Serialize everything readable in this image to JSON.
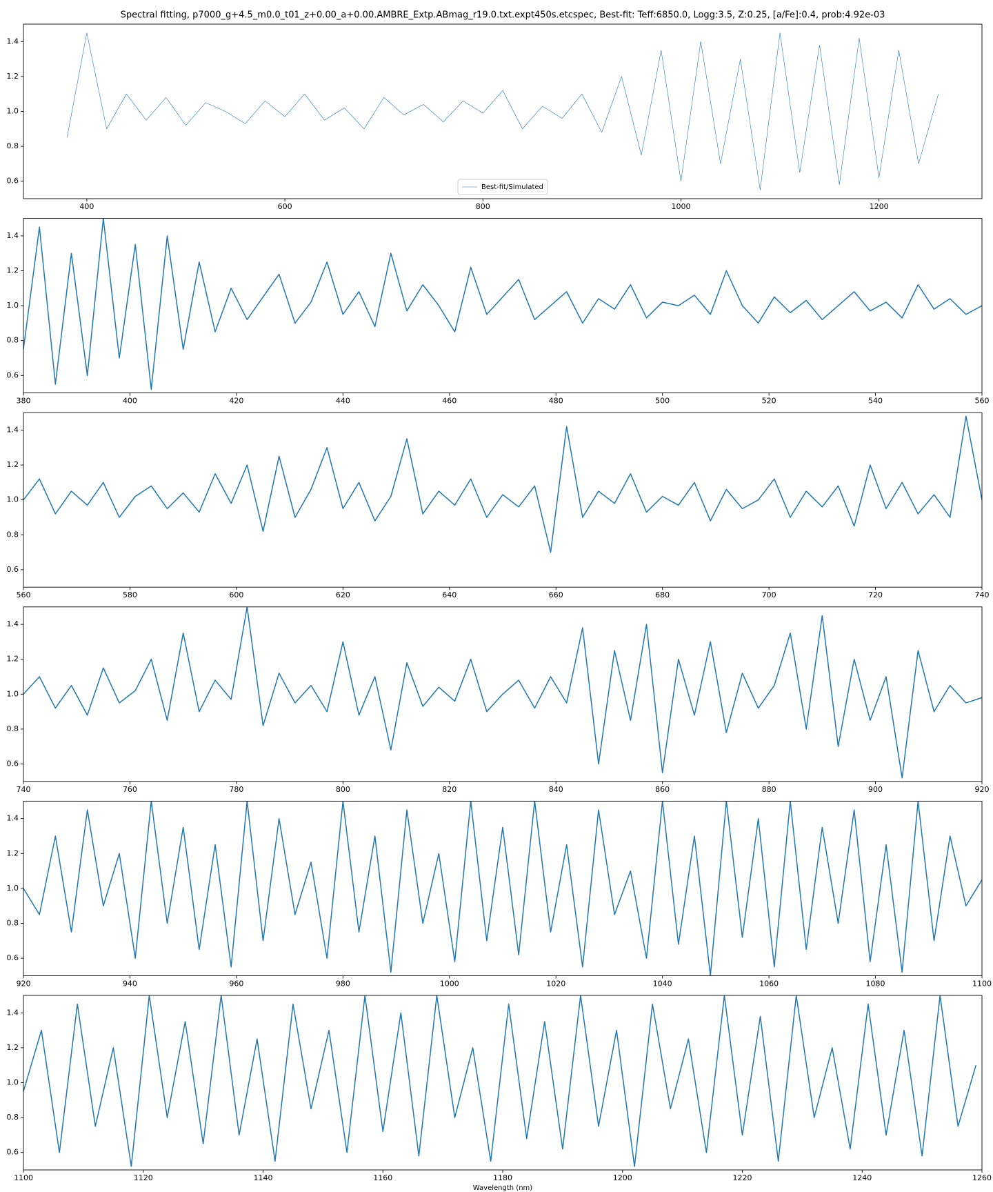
{
  "chart_data": [
    {
      "type": "line",
      "title": "Spectral fitting, p7000_g+4.5_m0.0_t01_z+0.00_a+0.00.AMBRE_Extp.ABmag_r19.0.txt.expt450s.etcspec, Best-fit: Teff:6850.0, Logg:3.5, Z:0.25, [a/Fe]:0.4, prob:4.92e-03",
      "x": [
        380,
        400,
        420,
        440,
        460,
        480,
        500,
        520,
        540,
        560,
        580,
        600,
        620,
        640,
        660,
        680,
        700,
        720,
        740,
        760,
        780,
        800,
        820,
        840,
        860,
        880,
        900,
        920,
        940,
        960,
        980,
        1000,
        1020,
        1040,
        1060,
        1080,
        1100,
        1120,
        1140,
        1160,
        1180,
        1200,
        1220,
        1240,
        1260
      ],
      "series": [
        {
          "name": "Best-fit/Simulated",
          "color": "#1f77b4",
          "values": [
            0.85,
            1.45,
            0.9,
            1.1,
            0.95,
            1.08,
            0.92,
            1.05,
            1.0,
            0.93,
            1.06,
            0.97,
            1.1,
            0.95,
            1.02,
            0.9,
            1.08,
            0.98,
            1.04,
            0.94,
            1.06,
            0.99,
            1.12,
            0.9,
            1.03,
            0.96,
            1.1,
            0.88,
            1.2,
            0.75,
            1.35,
            0.6,
            1.4,
            0.7,
            1.3,
            0.55,
            1.45,
            0.65,
            1.38,
            0.58,
            1.42,
            0.62,
            1.35,
            0.7,
            1.1
          ]
        }
      ],
      "xlim": [
        336,
        1304
      ],
      "xticks": [
        400,
        600,
        800,
        1000,
        1200
      ],
      "ylim": [
        0.5,
        1.5
      ],
      "yticks": [
        0.6,
        0.8,
        {
          "value": 1,
          "label": "1.0"
        },
        1.2,
        1.4
      ],
      "legend": "lower center"
    },
    {
      "type": "line",
      "x": [
        380,
        383,
        386,
        389,
        392,
        395,
        398,
        401,
        404,
        407,
        410,
        413,
        416,
        419,
        422,
        425,
        428,
        431,
        434,
        437,
        440,
        443,
        446,
        449,
        452,
        455,
        458,
        461,
        464,
        467,
        470,
        473,
        476,
        479,
        482,
        485,
        488,
        491,
        494,
        497,
        500,
        503,
        506,
        509,
        512,
        515,
        518,
        521,
        524,
        527,
        530,
        533,
        536,
        539,
        542,
        545,
        548,
        551,
        554,
        557,
        560
      ],
      "series": [
        {
          "color": "#1f77b4",
          "values": [
            0.75,
            1.45,
            0.55,
            1.3,
            0.6,
            1.5,
            0.7,
            1.35,
            0.52,
            1.4,
            0.75,
            1.25,
            0.85,
            1.1,
            0.92,
            1.05,
            1.18,
            0.9,
            1.02,
            1.25,
            0.95,
            1.08,
            0.88,
            1.3,
            0.97,
            1.12,
            1.0,
            0.85,
            1.22,
            0.95,
            1.05,
            1.15,
            0.92,
            1.0,
            1.08,
            0.9,
            1.04,
            0.98,
            1.12,
            0.93,
            1.02,
            1.0,
            1.06,
            0.95,
            1.2,
            1.0,
            0.9,
            1.05,
            0.96,
            1.03,
            0.92,
            1.0,
            1.08,
            0.97,
            1.02,
            0.93,
            1.12,
            0.98,
            1.04,
            0.95,
            1.0
          ]
        }
      ],
      "xlim": [
        380,
        560
      ],
      "xticks": [
        380,
        400,
        420,
        440,
        460,
        480,
        500,
        520,
        540,
        560
      ],
      "ylim": [
        0.5,
        1.5
      ],
      "yticks": [
        0.6,
        0.8,
        {
          "value": 1,
          "label": "1.0"
        },
        1.2,
        1.4
      ]
    },
    {
      "type": "line",
      "x": [
        560,
        563,
        566,
        569,
        572,
        575,
        578,
        581,
        584,
        587,
        590,
        593,
        596,
        599,
        602,
        605,
        608,
        611,
        614,
        617,
        620,
        623,
        626,
        629,
        632,
        635,
        638,
        641,
        644,
        647,
        650,
        653,
        656,
        659,
        662,
        665,
        668,
        671,
        674,
        677,
        680,
        683,
        686,
        689,
        692,
        695,
        698,
        701,
        704,
        707,
        710,
        713,
        716,
        719,
        722,
        725,
        728,
        731,
        734,
        737,
        740
      ],
      "series": [
        {
          "color": "#1f77b4",
          "values": [
            1.0,
            1.12,
            0.92,
            1.05,
            0.97,
            1.1,
            0.9,
            1.02,
            1.08,
            0.95,
            1.04,
            0.93,
            1.15,
            0.98,
            1.2,
            0.82,
            1.25,
            0.9,
            1.06,
            1.3,
            0.95,
            1.1,
            0.88,
            1.02,
            1.35,
            0.92,
            1.05,
            0.97,
            1.12,
            0.9,
            1.03,
            0.96,
            1.08,
            0.7,
            1.42,
            0.9,
            1.05,
            0.98,
            1.15,
            0.93,
            1.02,
            0.97,
            1.1,
            0.88,
            1.06,
            0.95,
            1.0,
            1.12,
            0.9,
            1.05,
            0.96,
            1.08,
            0.85,
            1.2,
            0.95,
            1.1,
            0.92,
            1.03,
            0.9,
            1.48,
            1.0
          ]
        }
      ],
      "xlim": [
        560,
        740
      ],
      "xticks": [
        560,
        580,
        600,
        620,
        640,
        660,
        680,
        700,
        720,
        740
      ],
      "ylim": [
        0.5,
        1.5
      ],
      "yticks": [
        0.6,
        0.8,
        {
          "value": 1,
          "label": "1.0"
        },
        1.2,
        1.4
      ]
    },
    {
      "type": "line",
      "x": [
        740,
        743,
        746,
        749,
        752,
        755,
        758,
        761,
        764,
        767,
        770,
        773,
        776,
        779,
        782,
        785,
        788,
        791,
        794,
        797,
        800,
        803,
        806,
        809,
        812,
        815,
        818,
        821,
        824,
        827,
        830,
        833,
        836,
        839,
        842,
        845,
        848,
        851,
        854,
        857,
        860,
        863,
        866,
        869,
        872,
        875,
        878,
        881,
        884,
        887,
        890,
        893,
        896,
        899,
        902,
        905,
        908,
        911,
        914,
        917,
        920
      ],
      "series": [
        {
          "color": "#1f77b4",
          "values": [
            1.0,
            1.1,
            0.92,
            1.05,
            0.88,
            1.15,
            0.95,
            1.02,
            1.2,
            0.85,
            1.35,
            0.9,
            1.08,
            0.97,
            1.5,
            0.82,
            1.12,
            0.95,
            1.05,
            0.9,
            1.3,
            0.88,
            1.1,
            0.68,
            1.18,
            0.93,
            1.04,
            0.96,
            1.2,
            0.9,
            1.0,
            1.08,
            0.92,
            1.1,
            0.95,
            1.38,
            0.6,
            1.25,
            0.85,
            1.4,
            0.55,
            1.2,
            0.88,
            1.3,
            0.78,
            1.12,
            0.92,
            1.05,
            1.35,
            0.8,
            1.45,
            0.7,
            1.2,
            0.85,
            1.1,
            0.52,
            1.25,
            0.9,
            1.05,
            0.95,
            0.98
          ]
        }
      ],
      "xlim": [
        740,
        920
      ],
      "xticks": [
        740,
        760,
        780,
        800,
        820,
        840,
        860,
        880,
        900,
        920
      ],
      "ylim": [
        0.5,
        1.5
      ],
      "yticks": [
        0.6,
        0.8,
        {
          "value": 1,
          "label": "1.0"
        },
        1.2,
        1.4
      ]
    },
    {
      "type": "line",
      "x": [
        920,
        923,
        926,
        929,
        932,
        935,
        938,
        941,
        944,
        947,
        950,
        953,
        956,
        959,
        962,
        965,
        968,
        971,
        974,
        977,
        980,
        983,
        986,
        989,
        992,
        995,
        998,
        1001,
        1004,
        1007,
        1010,
        1013,
        1016,
        1019,
        1022,
        1025,
        1028,
        1031,
        1034,
        1037,
        1040,
        1043,
        1046,
        1049,
        1052,
        1055,
        1058,
        1061,
        1064,
        1067,
        1070,
        1073,
        1076,
        1079,
        1082,
        1085,
        1088,
        1091,
        1094,
        1097,
        1100
      ],
      "series": [
        {
          "color": "#1f77b4",
          "values": [
            1.0,
            0.85,
            1.3,
            0.75,
            1.45,
            0.9,
            1.2,
            0.6,
            1.5,
            0.8,
            1.35,
            0.65,
            1.25,
            0.55,
            1.5,
            0.7,
            1.4,
            0.85,
            1.15,
            0.6,
            1.5,
            0.75,
            1.3,
            0.52,
            1.45,
            0.8,
            1.2,
            0.58,
            1.5,
            0.7,
            1.35,
            0.62,
            1.5,
            0.75,
            1.25,
            0.55,
            1.45,
            0.85,
            1.1,
            0.6,
            1.5,
            0.68,
            1.3,
            0.5,
            1.5,
            0.72,
            1.4,
            0.55,
            1.5,
            0.65,
            1.35,
            0.8,
            1.45,
            0.58,
            1.25,
            0.52,
            1.5,
            0.7,
            1.3,
            0.9,
            1.05
          ]
        }
      ],
      "xlim": [
        920,
        1100
      ],
      "xticks": [
        920,
        940,
        960,
        980,
        1000,
        1020,
        1040,
        1060,
        1080,
        1100
      ],
      "ylim": [
        0.5,
        1.5
      ],
      "yticks": [
        0.6,
        0.8,
        {
          "value": 1,
          "label": "1.0"
        },
        1.2,
        1.4
      ]
    },
    {
      "type": "line",
      "x_label": "Wavelength (nm)",
      "x": [
        1100,
        1103,
        1106,
        1109,
        1112,
        1115,
        1118,
        1121,
        1124,
        1127,
        1130,
        1133,
        1136,
        1139,
        1142,
        1145,
        1148,
        1151,
        1154,
        1157,
        1160,
        1163,
        1166,
        1169,
        1172,
        1175,
        1178,
        1181,
        1184,
        1187,
        1190,
        1193,
        1196,
        1199,
        1202,
        1205,
        1208,
        1211,
        1214,
        1217,
        1220,
        1223,
        1226,
        1229,
        1232,
        1235,
        1238,
        1241,
        1244,
        1247,
        1250,
        1253,
        1256,
        1259
      ],
      "series": [
        {
          "color": "#1f77b4",
          "values": [
            0.95,
            1.3,
            0.6,
            1.45,
            0.75,
            1.2,
            0.52,
            1.5,
            0.8,
            1.35,
            0.65,
            1.5,
            0.7,
            1.25,
            0.55,
            1.45,
            0.85,
            1.3,
            0.6,
            1.5,
            0.72,
            1.4,
            0.58,
            1.5,
            0.8,
            1.2,
            0.55,
            1.45,
            0.68,
            1.35,
            0.62,
            1.5,
            0.75,
            1.3,
            0.52,
            1.45,
            0.85,
            1.25,
            0.6,
            1.5,
            0.7,
            1.38,
            0.55,
            1.5,
            0.8,
            1.2,
            0.62,
            1.45,
            0.7,
            1.3,
            0.58,
            1.5,
            0.75,
            1.1
          ]
        }
      ],
      "xlim": [
        1100,
        1260
      ],
      "xticks": [
        1100,
        1120,
        1140,
        1160,
        1180,
        1200,
        1220,
        1240,
        1260
      ],
      "ylim": [
        0.5,
        1.5
      ],
      "yticks": [
        0.6,
        0.8,
        {
          "value": 1,
          "label": "1.0"
        },
        1.2,
        1.4
      ]
    }
  ]
}
